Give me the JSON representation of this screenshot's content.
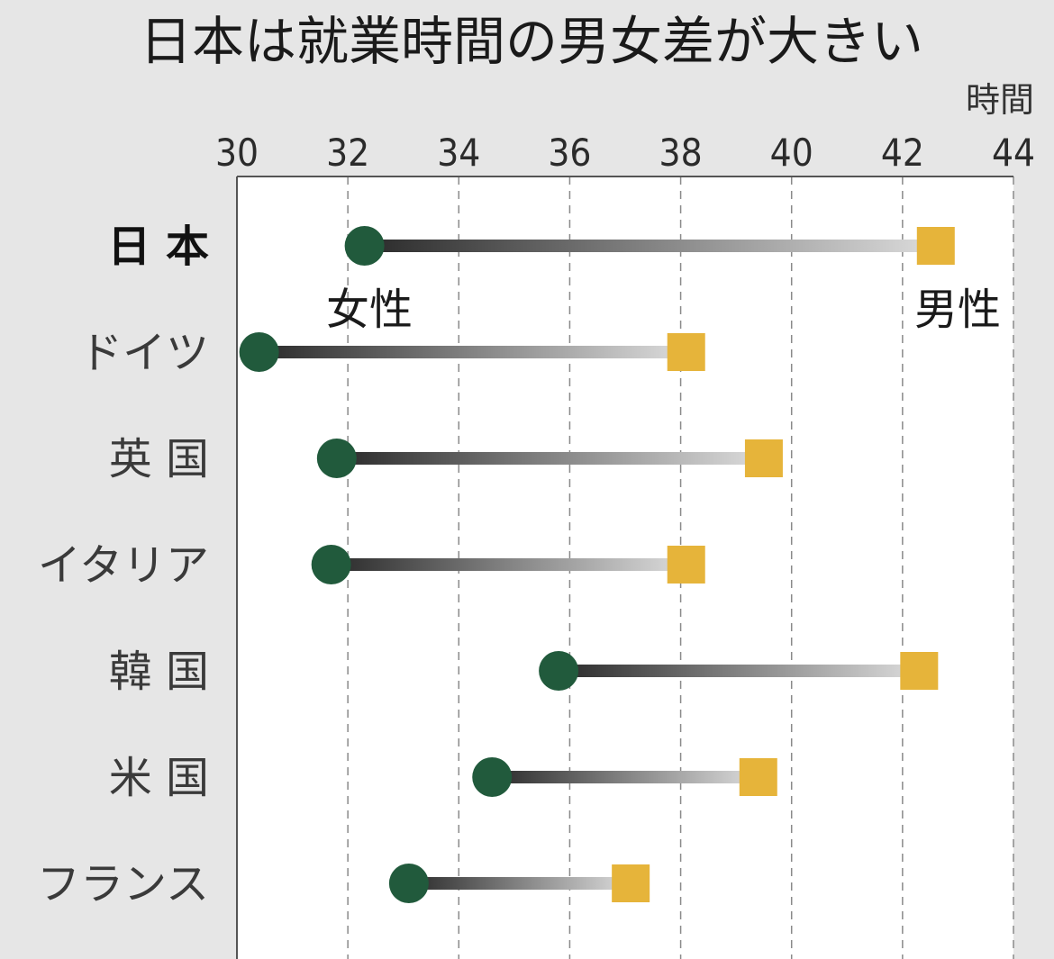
{
  "chart_data": {
    "type": "dumbbell",
    "title": "日本は就業時間の男女差が大きい",
    "unit": "時間",
    "x_range": [
      30,
      44
    ],
    "x_ticks": [
      "30",
      "32",
      "34",
      "36",
      "38",
      "40",
      "42",
      "44"
    ],
    "grid": "vertical-dashed",
    "series": [
      {
        "name": "女性",
        "marker": "circle",
        "color": "#215a3c"
      },
      {
        "name": "男性",
        "marker": "square",
        "color": "#e6b43a"
      }
    ],
    "categories": [
      "日本",
      "ドイツ",
      "英国",
      "イタリア",
      "韓国",
      "米国",
      "フランス"
    ],
    "category_labels": [
      "日 本",
      "ドイツ",
      "英 国",
      "イタリア",
      "韓 国",
      "米 国",
      "フランス"
    ],
    "highlight": "日本",
    "female": [
      32.3,
      30.4,
      31.8,
      31.7,
      35.8,
      34.6,
      33.1
    ],
    "male": [
      42.6,
      38.1,
      39.5,
      38.1,
      42.3,
      39.4,
      37.1
    ]
  }
}
